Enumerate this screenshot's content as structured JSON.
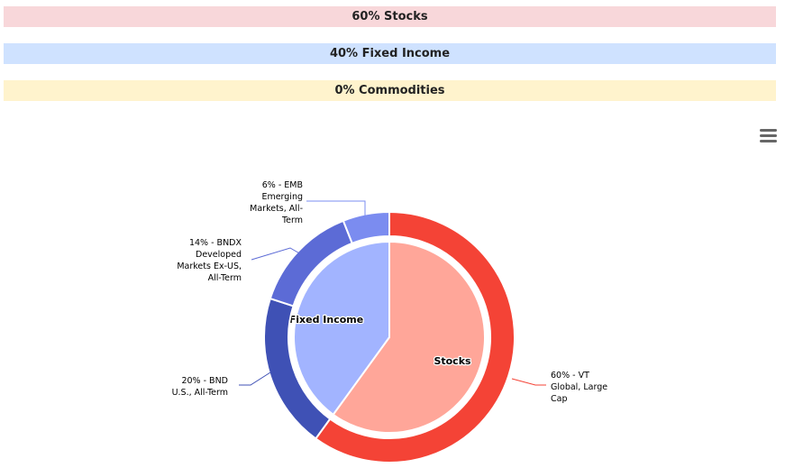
{
  "bands": [
    {
      "label": "60% Stocks",
      "color": "#f8d7da"
    },
    {
      "label": "40% Fixed Income",
      "color": "#cfe2ff"
    },
    {
      "label": "0% Commodities",
      "color": "#fff3cd"
    }
  ],
  "menu": {
    "icon": "hamburger-menu-icon"
  },
  "chart_data": {
    "type": "pie",
    "inner": {
      "slices": [
        {
          "label": "Stocks",
          "value": 60,
          "color": "#ffa699"
        },
        {
          "label": "Fixed Income",
          "value": 40,
          "color": "#a2b4ff"
        }
      ]
    },
    "outer": {
      "slices": [
        {
          "value": 60,
          "lines": [
            "60% - VT",
            "Global, Large",
            "Cap"
          ],
          "color": "#f44336"
        },
        {
          "value": 20,
          "lines": [
            "20% - BND",
            "U.S., All-Term"
          ],
          "color": "#3f51b5"
        },
        {
          "value": 14,
          "lines": [
            "14% - BNDX",
            "Developed",
            "Markets Ex-US,",
            "All-Term"
          ],
          "color": "#5c6bd6"
        },
        {
          "value": 6,
          "lines": [
            "6% - EMB",
            "Emerging",
            "Markets, All-",
            "Term"
          ],
          "color": "#7b8cf0"
        }
      ]
    }
  }
}
